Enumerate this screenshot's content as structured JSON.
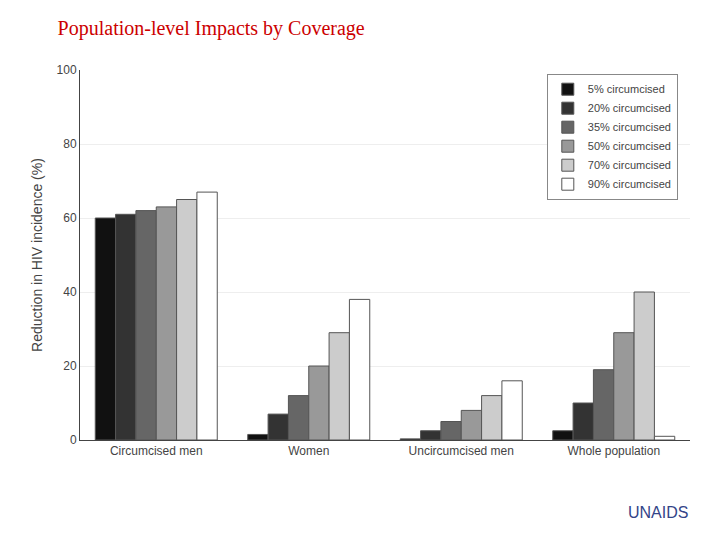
{
  "chart_data": {
    "type": "bar",
    "title": "Population-level Impacts by Coverage",
    "ylabel": "Reduction in HIV incidence (%)",
    "categories": [
      "Circumcised men",
      "Women",
      "Uncircumcised men",
      "Whole population"
    ],
    "series": [
      {
        "name": "5% circumcised",
        "color": "#111111",
        "values": [
          60,
          1.5,
          0.3,
          2.5
        ]
      },
      {
        "name": "20% circumcised",
        "color": "#333333",
        "values": [
          61,
          7,
          2.5,
          10
        ]
      },
      {
        "name": "35% circumcised",
        "color": "#666666",
        "values": [
          62,
          12,
          5,
          19
        ]
      },
      {
        "name": "50% circumcised",
        "color": "#999999",
        "values": [
          63,
          20,
          8,
          29
        ]
      },
      {
        "name": "70% circumcised",
        "color": "#cccccc",
        "values": [
          65,
          29,
          12,
          40
        ]
      },
      {
        "name": "90% circumcised",
        "color": "#ffffff",
        "values": [
          67,
          38,
          16,
          1
        ]
      }
    ],
    "ylim": [
      0,
      100
    ],
    "yticks": [
      0,
      20,
      40,
      60,
      80,
      100
    ],
    "grid": true,
    "legend": "upper right",
    "annotations": [
      {
        "text": "UNAIDS"
      }
    ]
  }
}
